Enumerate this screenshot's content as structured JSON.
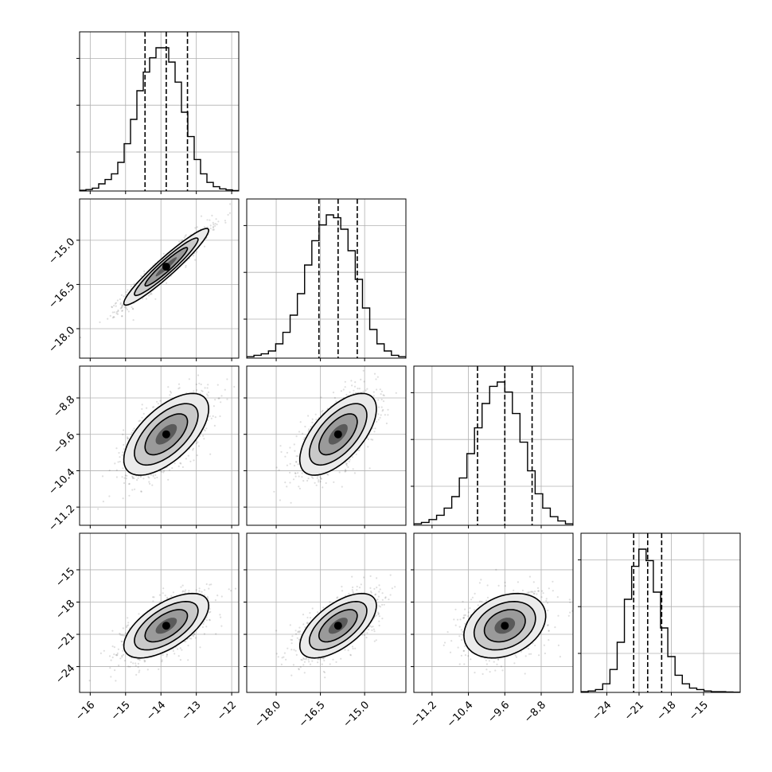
{
  "chart_data": {
    "type": "corner",
    "grid_on": true,
    "parameters": [
      {
        "index": 0,
        "range": [
          -16.3,
          -11.8
        ],
        "ticks": [
          -16,
          -15,
          -14,
          -13,
          -12
        ],
        "tick_labels": [
          "−16",
          "−15",
          "−14",
          "−13",
          "−12"
        ],
        "quantiles": [
          -14.45,
          -13.85,
          -13.25
        ],
        "hist_max": 1.0,
        "hist_counts": [
          0.005,
          0.01,
          0.02,
          0.05,
          0.08,
          0.12,
          0.2,
          0.33,
          0.5,
          0.7,
          0.83,
          0.93,
          1.0,
          1.0,
          0.9,
          0.76,
          0.55,
          0.38,
          0.22,
          0.12,
          0.06,
          0.03,
          0.015,
          0.008,
          0.003
        ]
      },
      {
        "index": 1,
        "range": [
          -19.0,
          -13.6
        ],
        "ticks": [
          -18.0,
          -16.5,
          -15.0
        ],
        "tick_labels": [
          "−18.0",
          "−16.5",
          "−15.0"
        ],
        "quantiles": [
          -16.55,
          -15.9,
          -15.25
        ],
        "hist_max": 1.0,
        "hist_counts": [
          0.01,
          0.02,
          0.03,
          0.05,
          0.1,
          0.18,
          0.3,
          0.45,
          0.65,
          0.82,
          0.93,
          1.0,
          0.98,
          0.9,
          0.75,
          0.55,
          0.35,
          0.2,
          0.1,
          0.05,
          0.02,
          0.01
        ]
      },
      {
        "index": 2,
        "range": [
          -11.6,
          -8.1
        ],
        "ticks": [
          -11.2,
          -10.4,
          -9.6,
          -8.8
        ],
        "tick_labels": [
          "−11.2",
          "−10.4",
          "−9.6",
          "−8.8"
        ],
        "quantiles": [
          -10.2,
          -9.6,
          -9.0
        ],
        "hist_max": 1.0,
        "hist_counts": [
          0.01,
          0.02,
          0.04,
          0.07,
          0.12,
          0.2,
          0.33,
          0.5,
          0.68,
          0.85,
          0.97,
          1.0,
          0.93,
          0.78,
          0.58,
          0.38,
          0.22,
          0.12,
          0.06,
          0.03,
          0.01
        ]
      },
      {
        "index": 3,
        "range": [
          -26.4,
          -11.6
        ],
        "ticks": [
          -24,
          -21,
          -18,
          -15
        ],
        "tick_labels": [
          "−24",
          "−21",
          "−18",
          "−15"
        ],
        "quantiles": [
          -21.5,
          -20.2,
          -18.9
        ],
        "hist_max": 1.0,
        "hist_counts": [
          0.005,
          0.01,
          0.02,
          0.06,
          0.16,
          0.35,
          0.65,
          0.88,
          1.0,
          0.92,
          0.7,
          0.45,
          0.25,
          0.12,
          0.06,
          0.03,
          0.02,
          0.01,
          0.005,
          0.005,
          0.003,
          0.002
        ]
      }
    ],
    "pairs": [
      {
        "row": 1,
        "col": 0,
        "mean": [
          -13.85,
          -15.9
        ],
        "std": [
          0.6,
          0.65
        ],
        "corr": 0.95
      },
      {
        "row": 2,
        "col": 0,
        "mean": [
          -13.85,
          -9.6
        ],
        "std": [
          0.6,
          0.45
        ],
        "corr": 0.62
      },
      {
        "row": 2,
        "col": 1,
        "mean": [
          -15.9,
          -9.6
        ],
        "std": [
          0.65,
          0.45
        ],
        "corr": 0.62
      },
      {
        "row": 3,
        "col": 0,
        "mean": [
          -13.85,
          -20.2
        ],
        "std": [
          0.6,
          1.5
        ],
        "corr": 0.62
      },
      {
        "row": 3,
        "col": 1,
        "mean": [
          -15.9,
          -20.2
        ],
        "std": [
          0.65,
          1.5
        ],
        "corr": 0.62
      },
      {
        "row": 3,
        "col": 2,
        "mean": [
          -9.6,
          -20.2
        ],
        "std": [
          0.45,
          1.5
        ],
        "corr": 0.3
      }
    ],
    "contour_levels_sigma": [
      0.5,
      1.0,
      1.5,
      2.0
    ]
  }
}
